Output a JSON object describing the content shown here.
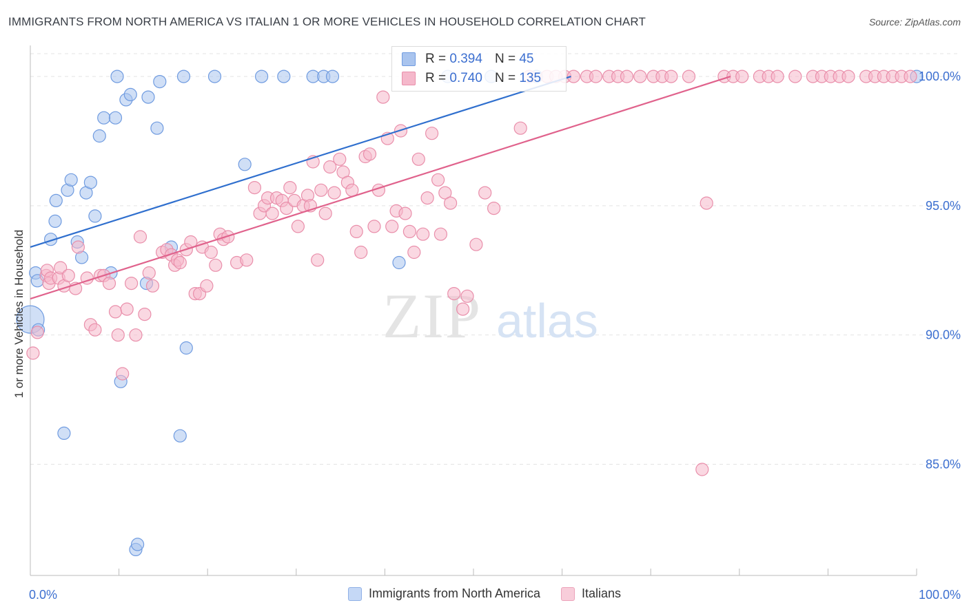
{
  "title": "IMMIGRANTS FROM NORTH AMERICA VS ITALIAN 1 OR MORE VEHICLES IN HOUSEHOLD CORRELATION CHART",
  "source": "Source: ZipAtlas.com",
  "watermark": {
    "zip": "ZIP",
    "atlas": "atlas"
  },
  "legend_box": {
    "rows": [
      {
        "r_label": "R =",
        "r_value": "0.394",
        "n_label": "N =",
        "n_value": "45",
        "color": "#a9c4ee"
      },
      {
        "r_label": "R =",
        "r_value": "0.740",
        "n_label": "N =",
        "n_value": "135",
        "color": "#f5b8cb"
      }
    ]
  },
  "chart_data": {
    "type": "scatter",
    "ylabel": "1 or more Vehicles in Household",
    "xlim": [
      0,
      100
    ],
    "ylim": [
      80.7,
      101.2
    ],
    "x_tick_labels": [
      "0.0%",
      "100.0%"
    ],
    "y_ticks": [
      100,
      95,
      90,
      85
    ],
    "y_tick_labels": [
      "100.0%",
      "95.0%",
      "90.0%",
      "85.0%"
    ],
    "grid": true,
    "legend": "bottom",
    "series": [
      {
        "name": "Immigrants from North America",
        "color": "#a9c4ee",
        "stroke": "#6f9be0",
        "line_color": "#2f6fce",
        "trend": [
          [
            0,
            93.4
          ],
          [
            61,
            100
          ]
        ],
        "points": [
          [
            0.0,
            90.6
          ],
          [
            0.6,
            92.4
          ],
          [
            0.8,
            92.1
          ],
          [
            0.9,
            90.2
          ],
          [
            2.3,
            93.7
          ],
          [
            2.8,
            94.4
          ],
          [
            2.9,
            95.2
          ],
          [
            3.8,
            86.2
          ],
          [
            4.2,
            95.6
          ],
          [
            4.6,
            96.0
          ],
          [
            5.3,
            93.6
          ],
          [
            5.8,
            93.0
          ],
          [
            6.3,
            95.5
          ],
          [
            6.8,
            95.9
          ],
          [
            7.3,
            94.6
          ],
          [
            7.8,
            97.7
          ],
          [
            8.3,
            98.4
          ],
          [
            9.1,
            92.4
          ],
          [
            9.6,
            98.4
          ],
          [
            9.8,
            100.0
          ],
          [
            10.2,
            88.2
          ],
          [
            10.8,
            99.1
          ],
          [
            11.3,
            99.3
          ],
          [
            11.9,
            81.7
          ],
          [
            12.1,
            81.9
          ],
          [
            13.1,
            92.0
          ],
          [
            13.3,
            99.2
          ],
          [
            14.3,
            98.0
          ],
          [
            14.6,
            99.8
          ],
          [
            15.9,
            93.4
          ],
          [
            16.9,
            86.1
          ],
          [
            17.3,
            100.0
          ],
          [
            17.6,
            89.5
          ],
          [
            20.8,
            100.0
          ],
          [
            24.2,
            96.6
          ],
          [
            26.1,
            100.0
          ],
          [
            28.6,
            100.0
          ],
          [
            31.9,
            100.0
          ],
          [
            33.1,
            100.0
          ],
          [
            34.1,
            100.0
          ],
          [
            41.6,
            92.8
          ],
          [
            47.1,
            100.0
          ],
          [
            52.0,
            100.0
          ],
          [
            57.1,
            100.0
          ],
          [
            100.0,
            100.0
          ]
        ]
      },
      {
        "name": "Italians",
        "color": "#f5b8cb",
        "stroke": "#e98eaa",
        "line_color": "#e0628c",
        "trend": [
          [
            0,
            91.4
          ],
          [
            79,
            100
          ]
        ],
        "points": [
          [
            0.3,
            89.3
          ],
          [
            0.8,
            90.1
          ],
          [
            1.8,
            92.3
          ],
          [
            1.9,
            92.5
          ],
          [
            2.1,
            92.0
          ],
          [
            2.3,
            92.2
          ],
          [
            3.2,
            92.2
          ],
          [
            3.4,
            92.6
          ],
          [
            3.8,
            91.9
          ],
          [
            4.3,
            92.3
          ],
          [
            5.1,
            91.8
          ],
          [
            5.4,
            93.4
          ],
          [
            6.4,
            92.2
          ],
          [
            6.8,
            90.4
          ],
          [
            7.3,
            90.2
          ],
          [
            7.9,
            92.3
          ],
          [
            8.3,
            92.3
          ],
          [
            8.9,
            92.0
          ],
          [
            9.6,
            90.9
          ],
          [
            9.9,
            90.0
          ],
          [
            10.4,
            88.5
          ],
          [
            10.9,
            91.0
          ],
          [
            11.4,
            92.0
          ],
          [
            11.9,
            90.0
          ],
          [
            12.4,
            93.8
          ],
          [
            12.9,
            90.8
          ],
          [
            13.4,
            92.4
          ],
          [
            13.8,
            91.9
          ],
          [
            14.9,
            93.2
          ],
          [
            15.4,
            93.3
          ],
          [
            15.9,
            93.1
          ],
          [
            16.3,
            92.7
          ],
          [
            16.6,
            92.9
          ],
          [
            16.9,
            92.8
          ],
          [
            17.6,
            93.3
          ],
          [
            18.1,
            93.6
          ],
          [
            18.6,
            91.6
          ],
          [
            19.1,
            91.6
          ],
          [
            19.4,
            93.4
          ],
          [
            19.9,
            91.9
          ],
          [
            20.4,
            93.2
          ],
          [
            20.9,
            92.7
          ],
          [
            21.4,
            93.9
          ],
          [
            21.8,
            93.7
          ],
          [
            22.3,
            93.8
          ],
          [
            23.3,
            92.8
          ],
          [
            24.4,
            92.9
          ],
          [
            25.3,
            95.7
          ],
          [
            25.9,
            94.7
          ],
          [
            26.4,
            95.0
          ],
          [
            26.8,
            95.3
          ],
          [
            27.3,
            94.7
          ],
          [
            27.8,
            95.3
          ],
          [
            28.4,
            95.2
          ],
          [
            28.9,
            94.9
          ],
          [
            29.3,
            95.7
          ],
          [
            29.8,
            95.2
          ],
          [
            30.2,
            94.2
          ],
          [
            30.8,
            95.0
          ],
          [
            31.3,
            95.4
          ],
          [
            31.6,
            95.0
          ],
          [
            31.9,
            96.7
          ],
          [
            32.4,
            92.9
          ],
          [
            32.8,
            95.6
          ],
          [
            33.3,
            94.7
          ],
          [
            33.8,
            96.5
          ],
          [
            34.3,
            95.5
          ],
          [
            34.9,
            96.8
          ],
          [
            35.3,
            96.3
          ],
          [
            35.8,
            95.9
          ],
          [
            36.3,
            95.6
          ],
          [
            36.8,
            94.0
          ],
          [
            37.3,
            93.2
          ],
          [
            37.8,
            96.9
          ],
          [
            38.3,
            97.0
          ],
          [
            38.8,
            94.2
          ],
          [
            39.3,
            95.6
          ],
          [
            39.8,
            99.2
          ],
          [
            40.3,
            97.6
          ],
          [
            40.8,
            94.2
          ],
          [
            41.3,
            94.8
          ],
          [
            41.8,
            97.9
          ],
          [
            42.3,
            94.7
          ],
          [
            42.8,
            94.0
          ],
          [
            43.3,
            93.2
          ],
          [
            43.8,
            96.8
          ],
          [
            44.3,
            93.9
          ],
          [
            44.8,
            95.3
          ],
          [
            45.3,
            97.8
          ],
          [
            46.0,
            96.0
          ],
          [
            46.3,
            93.9
          ],
          [
            46.8,
            95.5
          ],
          [
            47.4,
            95.1
          ],
          [
            47.8,
            91.6
          ],
          [
            48.8,
            91.0
          ],
          [
            49.3,
            91.5
          ],
          [
            50.3,
            93.5
          ],
          [
            51.3,
            95.5
          ],
          [
            52.3,
            94.9
          ],
          [
            55.3,
            98.0
          ],
          [
            56.3,
            100.0
          ],
          [
            58.3,
            100.0
          ],
          [
            60.3,
            100.0
          ],
          [
            61.3,
            100.0
          ],
          [
            62.8,
            100.0
          ],
          [
            63.8,
            100.0
          ],
          [
            65.3,
            100.0
          ],
          [
            66.3,
            100.0
          ],
          [
            67.3,
            100.0
          ],
          [
            68.8,
            100.0
          ],
          [
            70.3,
            100.0
          ],
          [
            71.3,
            100.0
          ],
          [
            72.3,
            100.0
          ],
          [
            74.3,
            100.0
          ],
          [
            75.8,
            84.8
          ],
          [
            76.3,
            95.1
          ],
          [
            78.3,
            100.0
          ],
          [
            79.3,
            100.0
          ],
          [
            80.3,
            100.0
          ],
          [
            82.3,
            100.0
          ],
          [
            83.3,
            100.0
          ],
          [
            84.3,
            100.0
          ],
          [
            86.3,
            100.0
          ],
          [
            88.3,
            100.0
          ],
          [
            89.3,
            100.0
          ],
          [
            90.3,
            100.0
          ],
          [
            91.3,
            100.0
          ],
          [
            92.3,
            100.0
          ],
          [
            94.3,
            100.0
          ],
          [
            95.3,
            100.0
          ],
          [
            96.3,
            100.0
          ],
          [
            97.3,
            100.0
          ],
          [
            98.3,
            100.0
          ],
          [
            99.3,
            100.0
          ],
          [
            59.3,
            100.0
          ]
        ]
      }
    ]
  }
}
